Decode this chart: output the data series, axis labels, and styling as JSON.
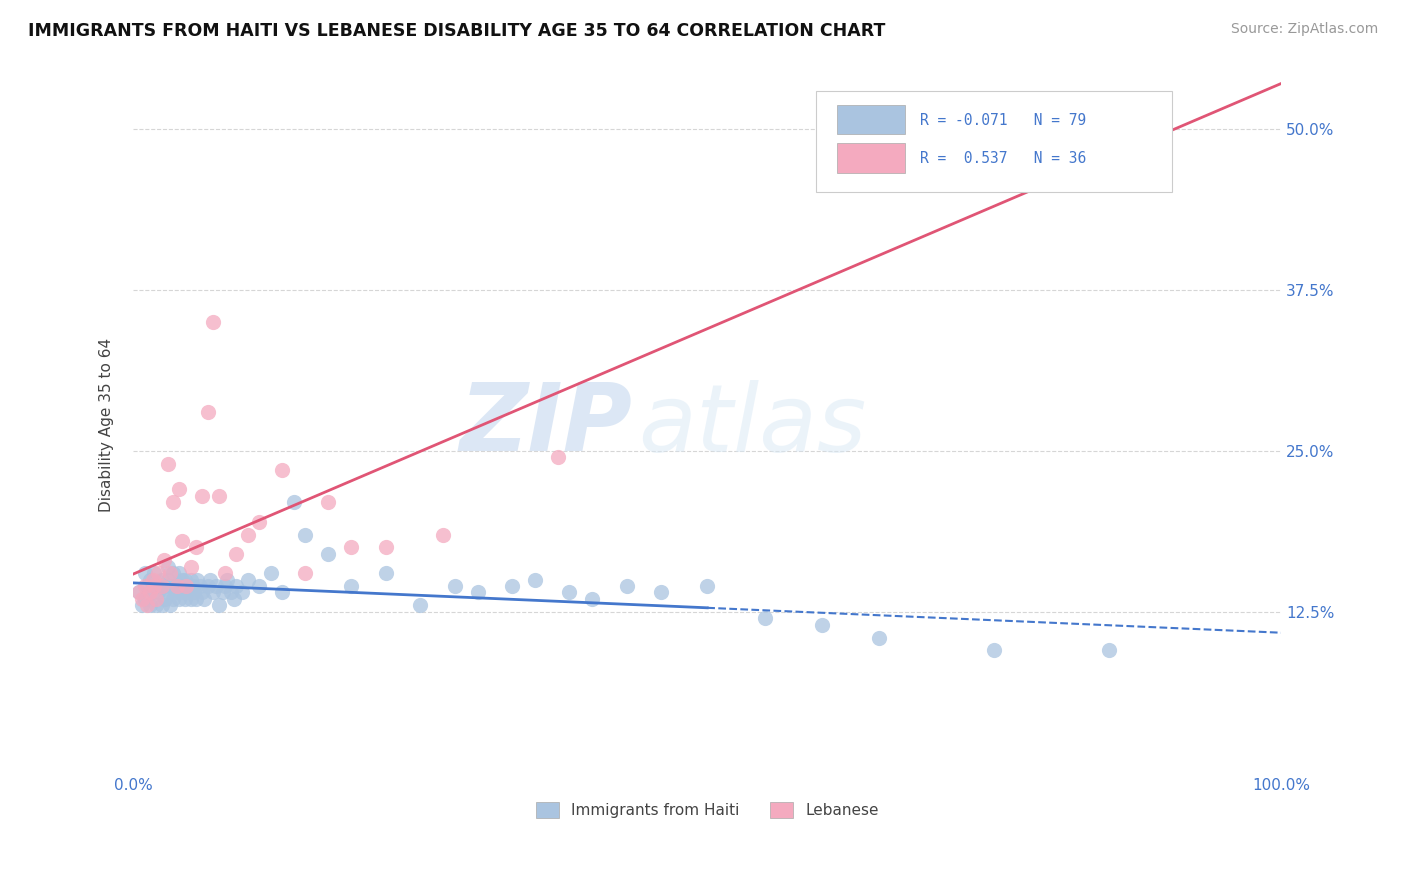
{
  "title": "IMMIGRANTS FROM HAITI VS LEBANESE DISABILITY AGE 35 TO 64 CORRELATION CHART",
  "source": "Source: ZipAtlas.com",
  "ylabel": "Disability Age 35 to 64",
  "legend_haiti": "Immigrants from Haiti",
  "legend_lebanese": "Lebanese",
  "haiti_color": "#aac4e0",
  "lebanese_color": "#f4aabf",
  "haiti_line_color": "#4477cc",
  "lebanese_line_color": "#e05575",
  "xlim": [
    0.0,
    1.0
  ],
  "ylim": [
    0.0,
    0.54
  ],
  "yticks": [
    0.125,
    0.25,
    0.375,
    0.5
  ],
  "yticklabels": [
    "12.5%",
    "25.0%",
    "37.5%",
    "50.0%"
  ],
  "watermark_zip": "ZIP",
  "watermark_atlas": "atlas",
  "background_color": "#ffffff",
  "haiti_scatter_x": [
    0.005,
    0.008,
    0.01,
    0.01,
    0.012,
    0.015,
    0.015,
    0.017,
    0.018,
    0.02,
    0.02,
    0.022,
    0.025,
    0.025,
    0.027,
    0.028,
    0.03,
    0.03,
    0.03,
    0.032,
    0.033,
    0.035,
    0.035,
    0.037,
    0.038,
    0.04,
    0.04,
    0.04,
    0.042,
    0.043,
    0.045,
    0.045,
    0.047,
    0.048,
    0.05,
    0.05,
    0.052,
    0.053,
    0.055,
    0.056,
    0.058,
    0.06,
    0.062,
    0.065,
    0.067,
    0.07,
    0.072,
    0.075,
    0.078,
    0.08,
    0.082,
    0.085,
    0.088,
    0.09,
    0.095,
    0.1,
    0.11,
    0.12,
    0.13,
    0.14,
    0.15,
    0.17,
    0.19,
    0.22,
    0.25,
    0.28,
    0.3,
    0.33,
    0.35,
    0.38,
    0.4,
    0.43,
    0.46,
    0.5,
    0.55,
    0.6,
    0.65,
    0.75,
    0.85
  ],
  "haiti_scatter_y": [
    0.14,
    0.13,
    0.155,
    0.135,
    0.145,
    0.13,
    0.15,
    0.14,
    0.155,
    0.13,
    0.145,
    0.14,
    0.13,
    0.15,
    0.145,
    0.135,
    0.14,
    0.15,
    0.16,
    0.13,
    0.145,
    0.135,
    0.155,
    0.14,
    0.145,
    0.135,
    0.145,
    0.155,
    0.14,
    0.15,
    0.135,
    0.15,
    0.14,
    0.145,
    0.135,
    0.15,
    0.145,
    0.14,
    0.135,
    0.15,
    0.145,
    0.14,
    0.135,
    0.145,
    0.15,
    0.14,
    0.145,
    0.13,
    0.14,
    0.145,
    0.15,
    0.14,
    0.135,
    0.145,
    0.14,
    0.15,
    0.145,
    0.155,
    0.14,
    0.21,
    0.185,
    0.17,
    0.145,
    0.155,
    0.13,
    0.145,
    0.14,
    0.145,
    0.15,
    0.14,
    0.135,
    0.145,
    0.14,
    0.145,
    0.12,
    0.115,
    0.105,
    0.095,
    0.095
  ],
  "lebanese_scatter_x": [
    0.005,
    0.008,
    0.01,
    0.012,
    0.015,
    0.017,
    0.018,
    0.02,
    0.022,
    0.025,
    0.027,
    0.03,
    0.032,
    0.035,
    0.038,
    0.04,
    0.043,
    0.046,
    0.05,
    0.055,
    0.06,
    0.065,
    0.07,
    0.075,
    0.08,
    0.09,
    0.1,
    0.11,
    0.13,
    0.15,
    0.17,
    0.19,
    0.22,
    0.27,
    0.37,
    0.73
  ],
  "lebanese_scatter_y": [
    0.14,
    0.135,
    0.145,
    0.13,
    0.14,
    0.15,
    0.145,
    0.135,
    0.155,
    0.145,
    0.165,
    0.24,
    0.155,
    0.21,
    0.145,
    0.22,
    0.18,
    0.145,
    0.16,
    0.175,
    0.215,
    0.28,
    0.35,
    0.215,
    0.155,
    0.17,
    0.185,
    0.195,
    0.235,
    0.155,
    0.21,
    0.175,
    0.175,
    0.185,
    0.245,
    0.5
  ]
}
